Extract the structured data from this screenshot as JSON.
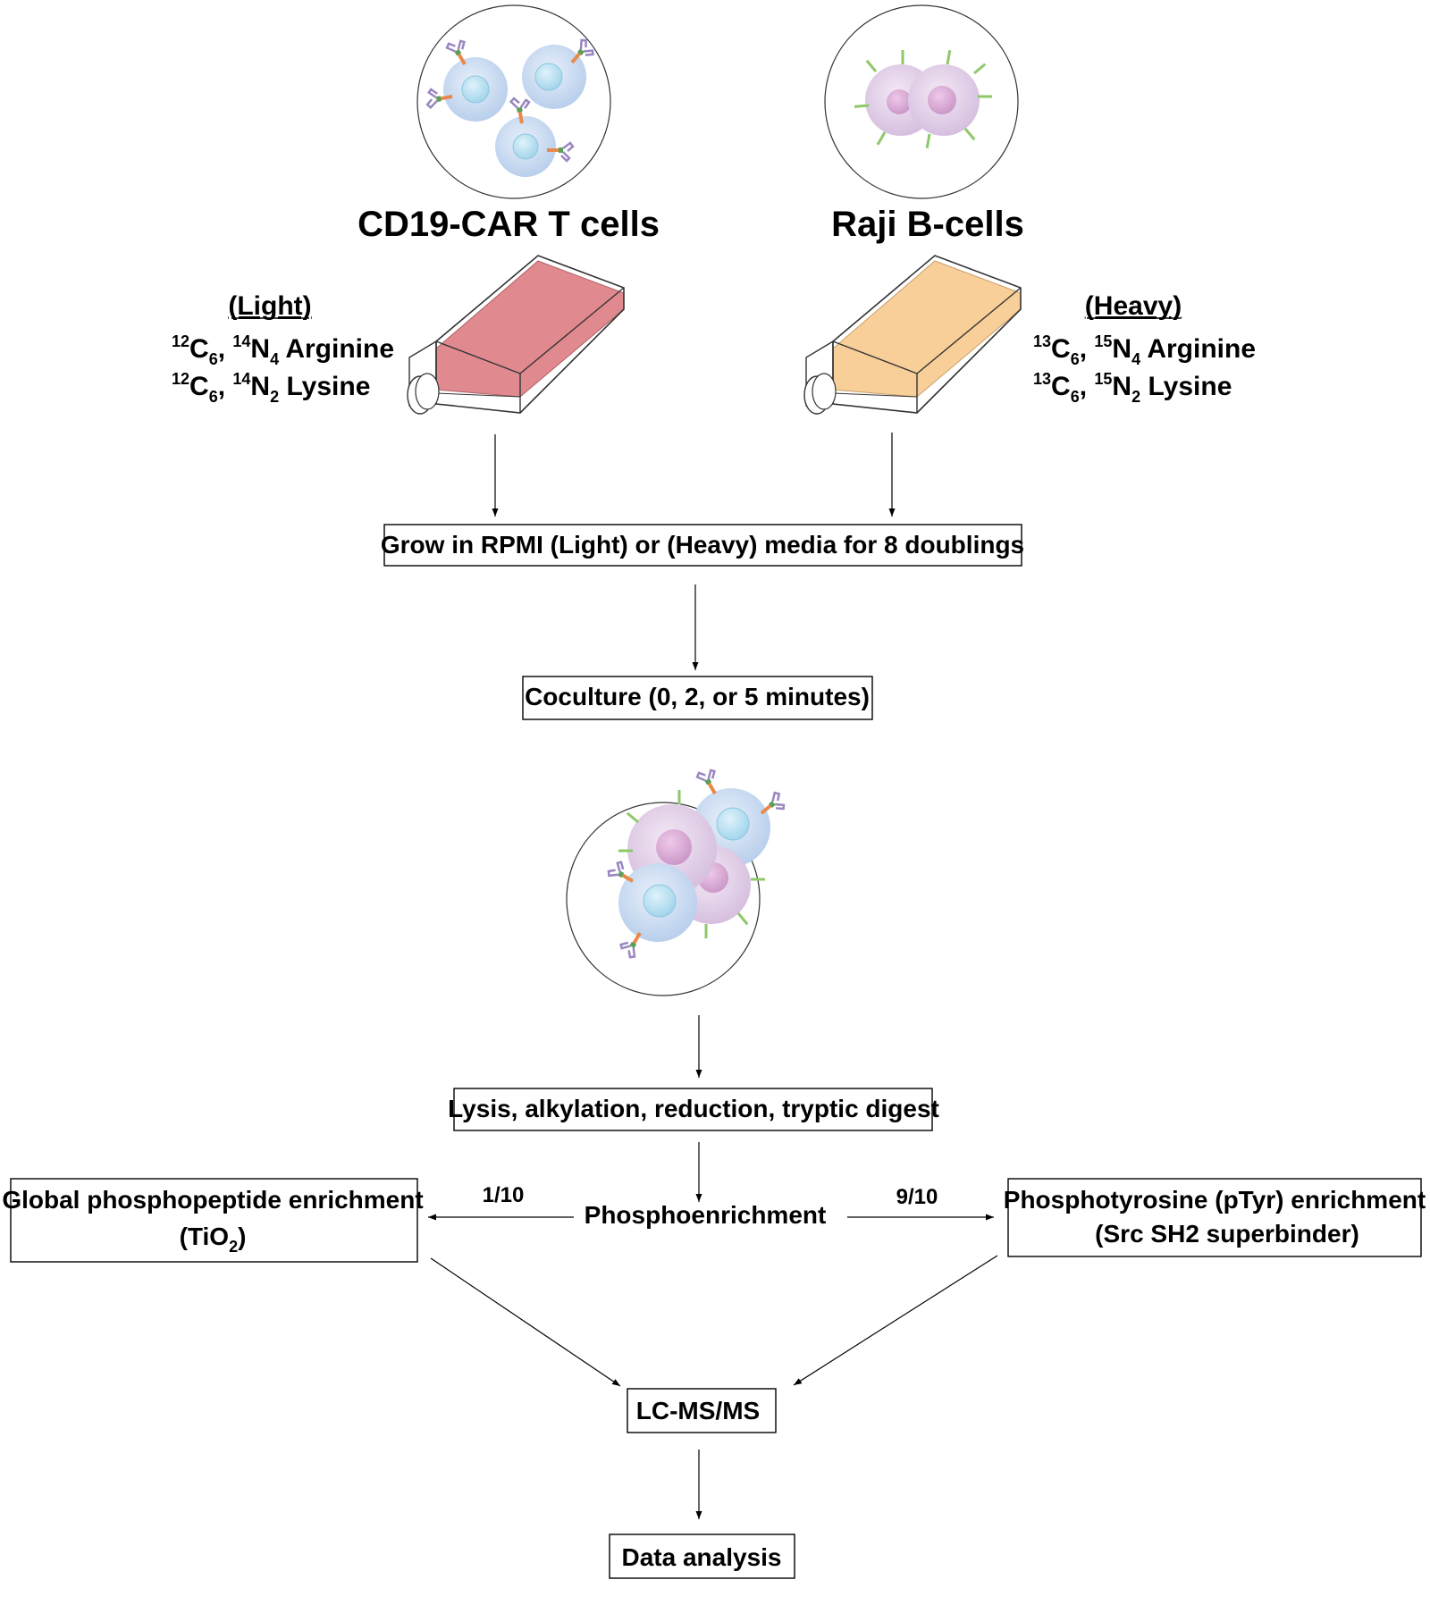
{
  "cells": {
    "car_t_title": "CD19-CAR T cells",
    "raji_title": "Raji B-cells"
  },
  "light": {
    "header": "(Light)",
    "arginine": {
      "c_mass": "12",
      "c_count": "6",
      "n_mass": "14",
      "n_count": "4",
      "name": "Arginine"
    },
    "lysine": {
      "c_mass": "12",
      "c_count": "6",
      "n_mass": "14",
      "n_count": "2",
      "name": "Lysine"
    },
    "flask_color": "#e08a8f"
  },
  "heavy": {
    "header": "(Heavy)",
    "arginine": {
      "c_mass": "13",
      "c_count": "6",
      "n_mass": "15",
      "n_count": "4",
      "name": "Arginine"
    },
    "lysine": {
      "c_mass": "13",
      "c_count": "6",
      "n_mass": "15",
      "n_count": "2",
      "name": "Lysine"
    },
    "flask_color": "#f8cf98"
  },
  "steps": {
    "grow": "Grow in RPMI (Light) or (Heavy) media for 8 doublings",
    "coculture": "Coculture (0, 2, or 5 minutes)",
    "lysis": "Lysis, alkylation, reduction, tryptic digest",
    "phosphoenrichment": "Phosphoenrichment",
    "lcms": "LC-MS/MS",
    "data_analysis": "Data analysis"
  },
  "global_enrichment": {
    "line1": "Global phosphopeptide enrichment",
    "line2_prefix": "(TiO",
    "line2_sub": "2",
    "line2_suffix": ")",
    "fraction": "1/10"
  },
  "ptyr_enrichment": {
    "line1": "Phosphotyrosine (pTyr) enrichment",
    "line2": "(Src SH2 superbinder)",
    "fraction": "9/10"
  },
  "colors": {
    "t_cell_membrane": "#cfe0f4",
    "t_cell_nucleus": "#bfe3f2",
    "b_cell_membrane": "#e6d3ea",
    "b_cell_nucleus": "#d7a8d2",
    "receptor_green": "#8fc86a",
    "car_orange": "#e8894a",
    "antibody_purple": "#9a86c0"
  }
}
